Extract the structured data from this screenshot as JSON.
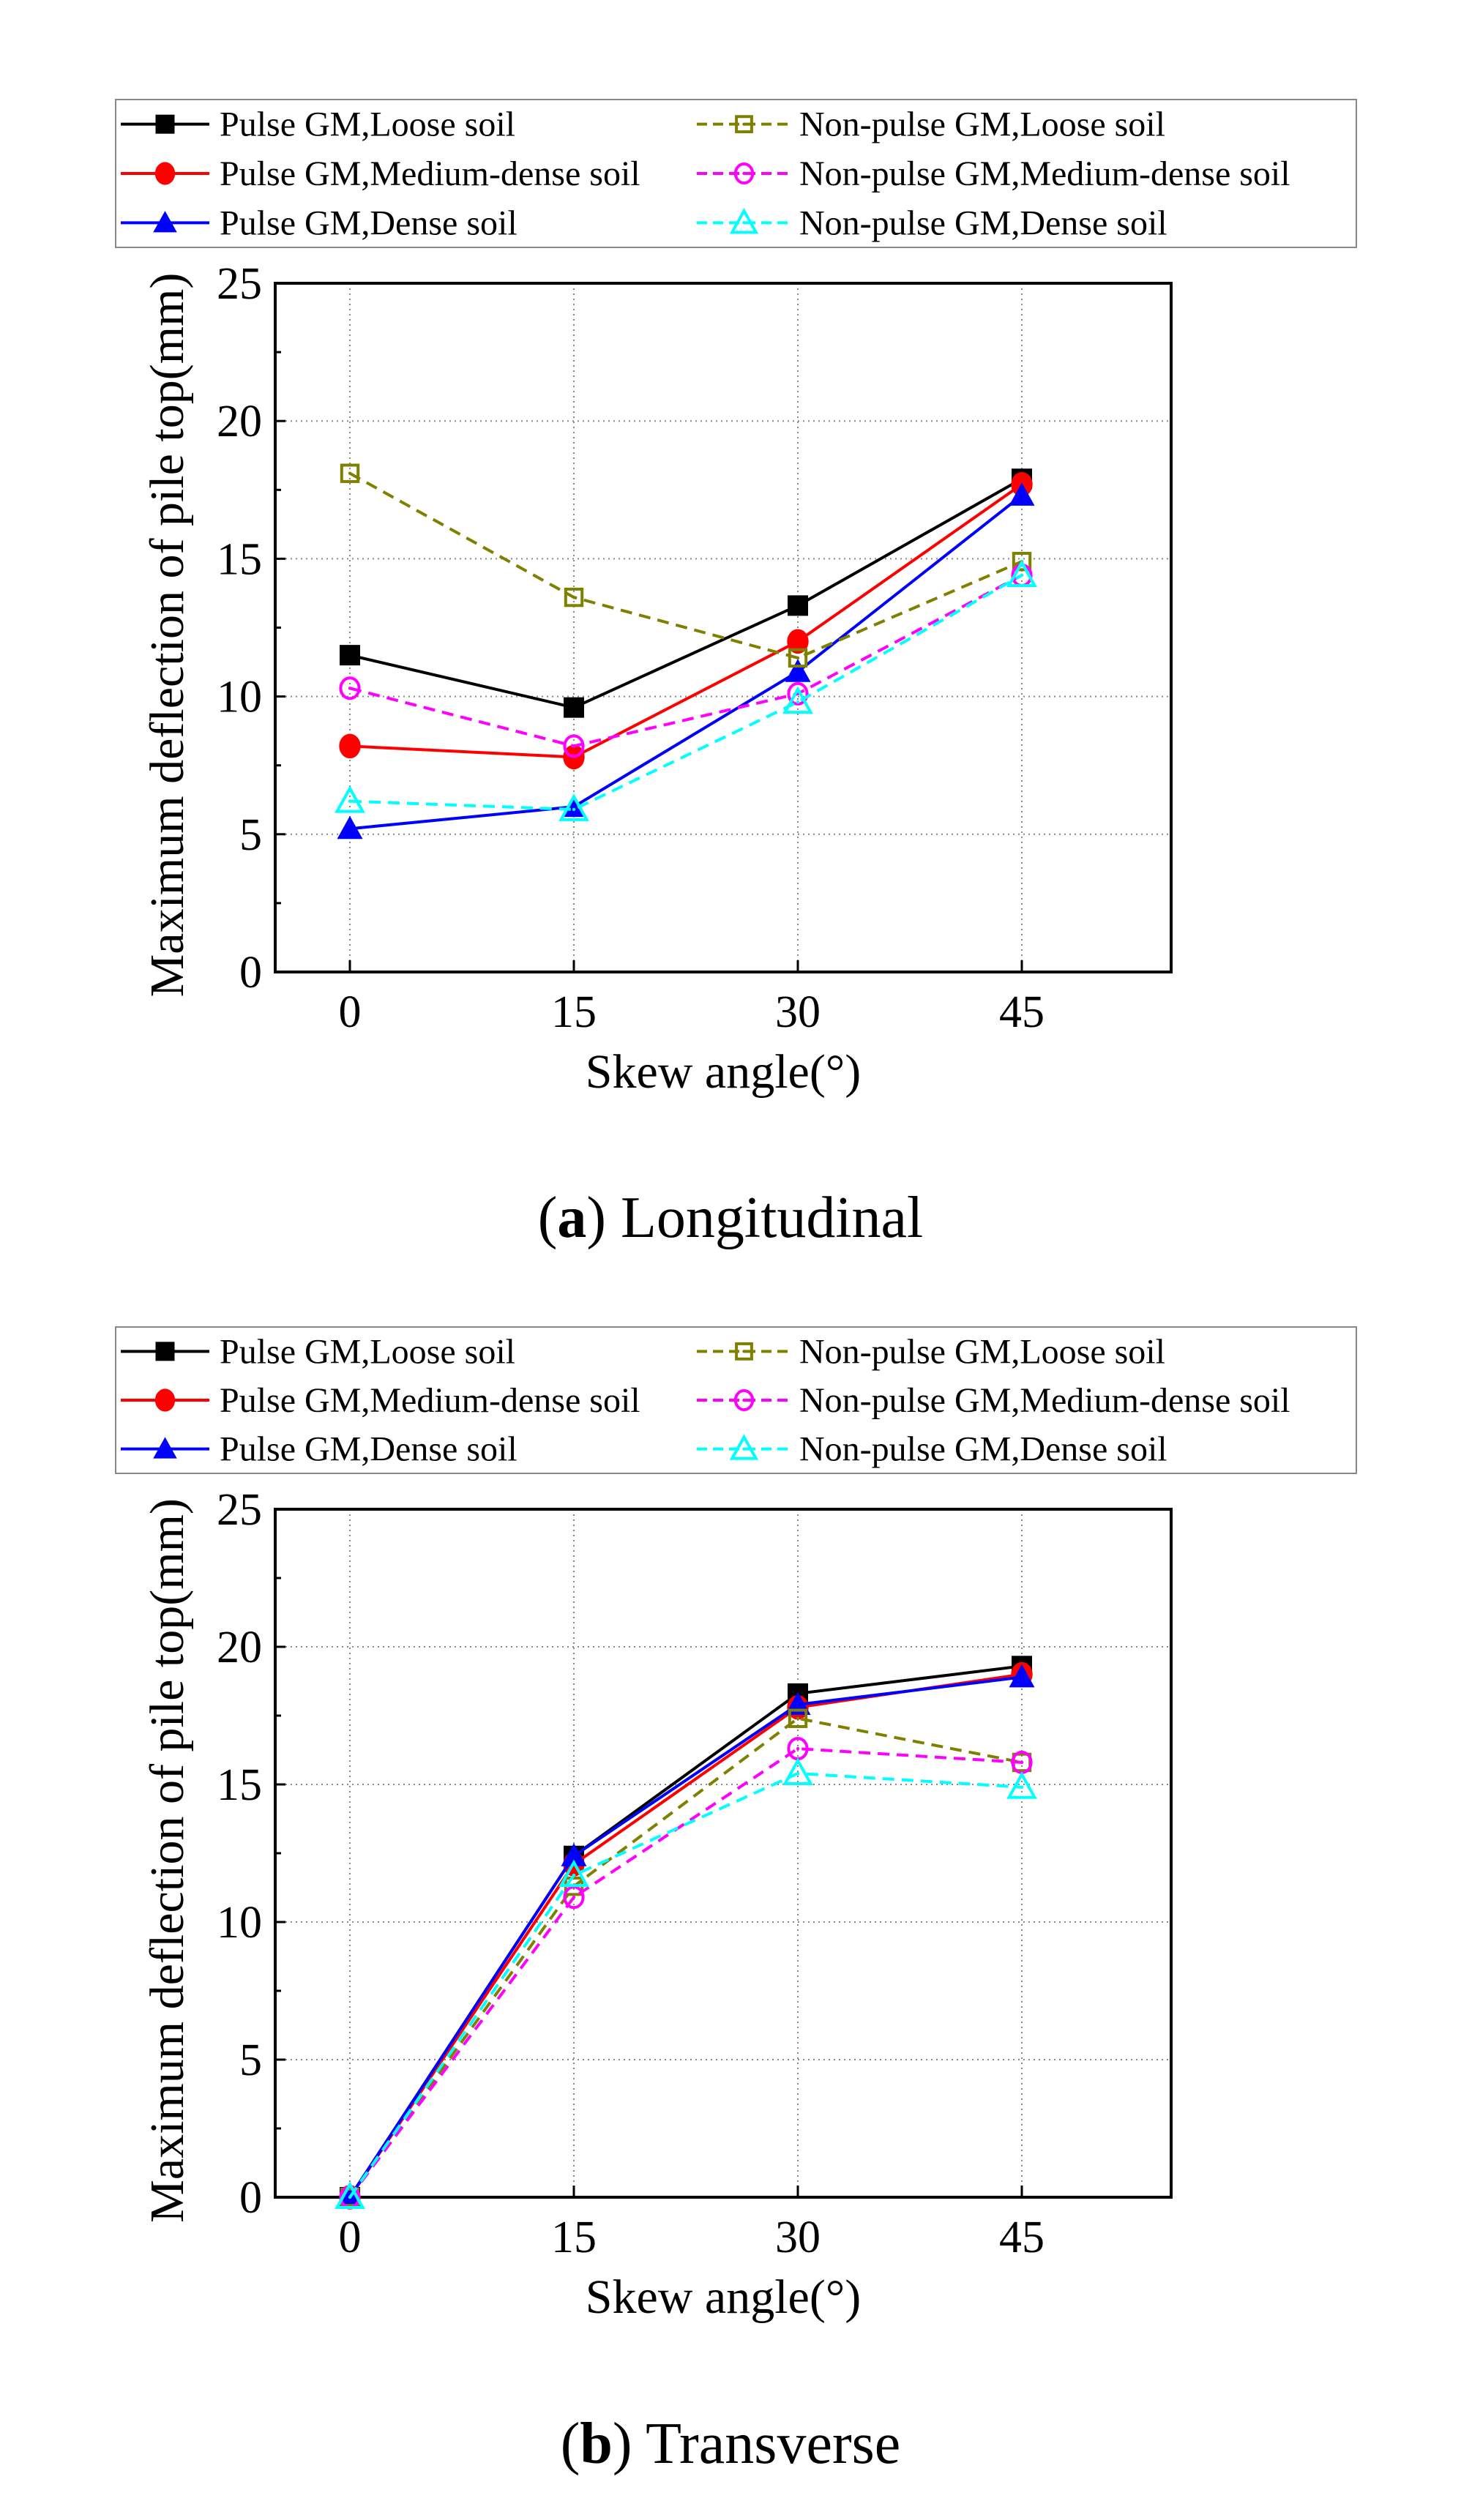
{
  "chart_data": [
    {
      "type": "line",
      "caption_letter": "a",
      "caption_text": " Longitudinal",
      "xlabel": "Skew angle(°)",
      "ylabel": "Maximum deflection of pile top(mm)",
      "x": [
        0,
        15,
        30,
        45
      ],
      "xticks": [
        "0",
        "15",
        "30",
        "45"
      ],
      "yticks": [
        "0",
        "5",
        "10",
        "15",
        "20",
        "25"
      ],
      "xlim": [
        -5,
        55
      ],
      "ylim": [
        0,
        25
      ],
      "grid": true,
      "legend_position": "top (above plot)",
      "series": [
        {
          "name": "Pulse GM,Loose soil",
          "color": "#000000",
          "marker": "square-filled",
          "dash": false,
          "values": [
            11.5,
            9.6,
            13.3,
            17.9
          ]
        },
        {
          "name": "Pulse GM,Medium-dense soil",
          "color": "#ff0000",
          "marker": "circle-filled",
          "dash": false,
          "values": [
            8.2,
            7.8,
            12.0,
            17.7
          ]
        },
        {
          "name": "Pulse GM,Dense soil",
          "color": "#0000ff",
          "marker": "triangle-filled",
          "dash": false,
          "values": [
            5.2,
            6.0,
            10.9,
            17.3
          ]
        },
        {
          "name": "Non-pulse GM,Loose soil",
          "color": "#808000",
          "marker": "square-open",
          "dash": true,
          "values": [
            18.1,
            13.6,
            11.4,
            14.9
          ]
        },
        {
          "name": "Non-pulse GM,Medium-dense soil",
          "color": "#ff00ff",
          "marker": "circle-open",
          "dash": true,
          "values": [
            10.3,
            8.2,
            10.1,
            14.4
          ]
        },
        {
          "name": "Non-pulse GM,Dense soil",
          "color": "#00ffff",
          "marker": "triangle-open",
          "dash": true,
          "values": [
            6.2,
            5.9,
            9.8,
            14.4
          ]
        }
      ]
    },
    {
      "type": "line",
      "caption_letter": "b",
      "caption_text": " Transverse",
      "xlabel": "Skew angle(°)",
      "ylabel": "Maximum deflection of pile top(mm)",
      "x": [
        0,
        15,
        30,
        45
      ],
      "xticks": [
        "0",
        "15",
        "30",
        "45"
      ],
      "yticks": [
        "0",
        "5",
        "10",
        "15",
        "20",
        "25"
      ],
      "xlim": [
        -5,
        55
      ],
      "ylim": [
        0,
        25
      ],
      "grid": true,
      "legend_position": "top (above plot)",
      "series": [
        {
          "name": "Pulse GM,Loose soil",
          "color": "#000000",
          "marker": "square-filled",
          "dash": false,
          "values": [
            0,
            12.4,
            18.3,
            19.3
          ]
        },
        {
          "name": "Pulse GM,Medium-dense soil",
          "color": "#ff0000",
          "marker": "circle-filled",
          "dash": false,
          "values": [
            0,
            12.1,
            17.8,
            19.0
          ]
        },
        {
          "name": "Pulse GM,Dense soil",
          "color": "#0000ff",
          "marker": "triangle-filled",
          "dash": false,
          "values": [
            0,
            12.4,
            17.9,
            18.9
          ]
        },
        {
          "name": "Non-pulse GM,Loose soil",
          "color": "#808000",
          "marker": "square-open",
          "dash": true,
          "values": [
            0,
            11.3,
            17.4,
            15.8
          ]
        },
        {
          "name": "Non-pulse GM,Medium-dense soil",
          "color": "#ff00ff",
          "marker": "circle-open",
          "dash": true,
          "values": [
            0,
            10.9,
            16.3,
            15.8
          ]
        },
        {
          "name": "Non-pulse GM,Dense soil",
          "color": "#00ffff",
          "marker": "triangle-open",
          "dash": true,
          "values": [
            0,
            11.7,
            15.4,
            14.9
          ]
        }
      ]
    }
  ]
}
